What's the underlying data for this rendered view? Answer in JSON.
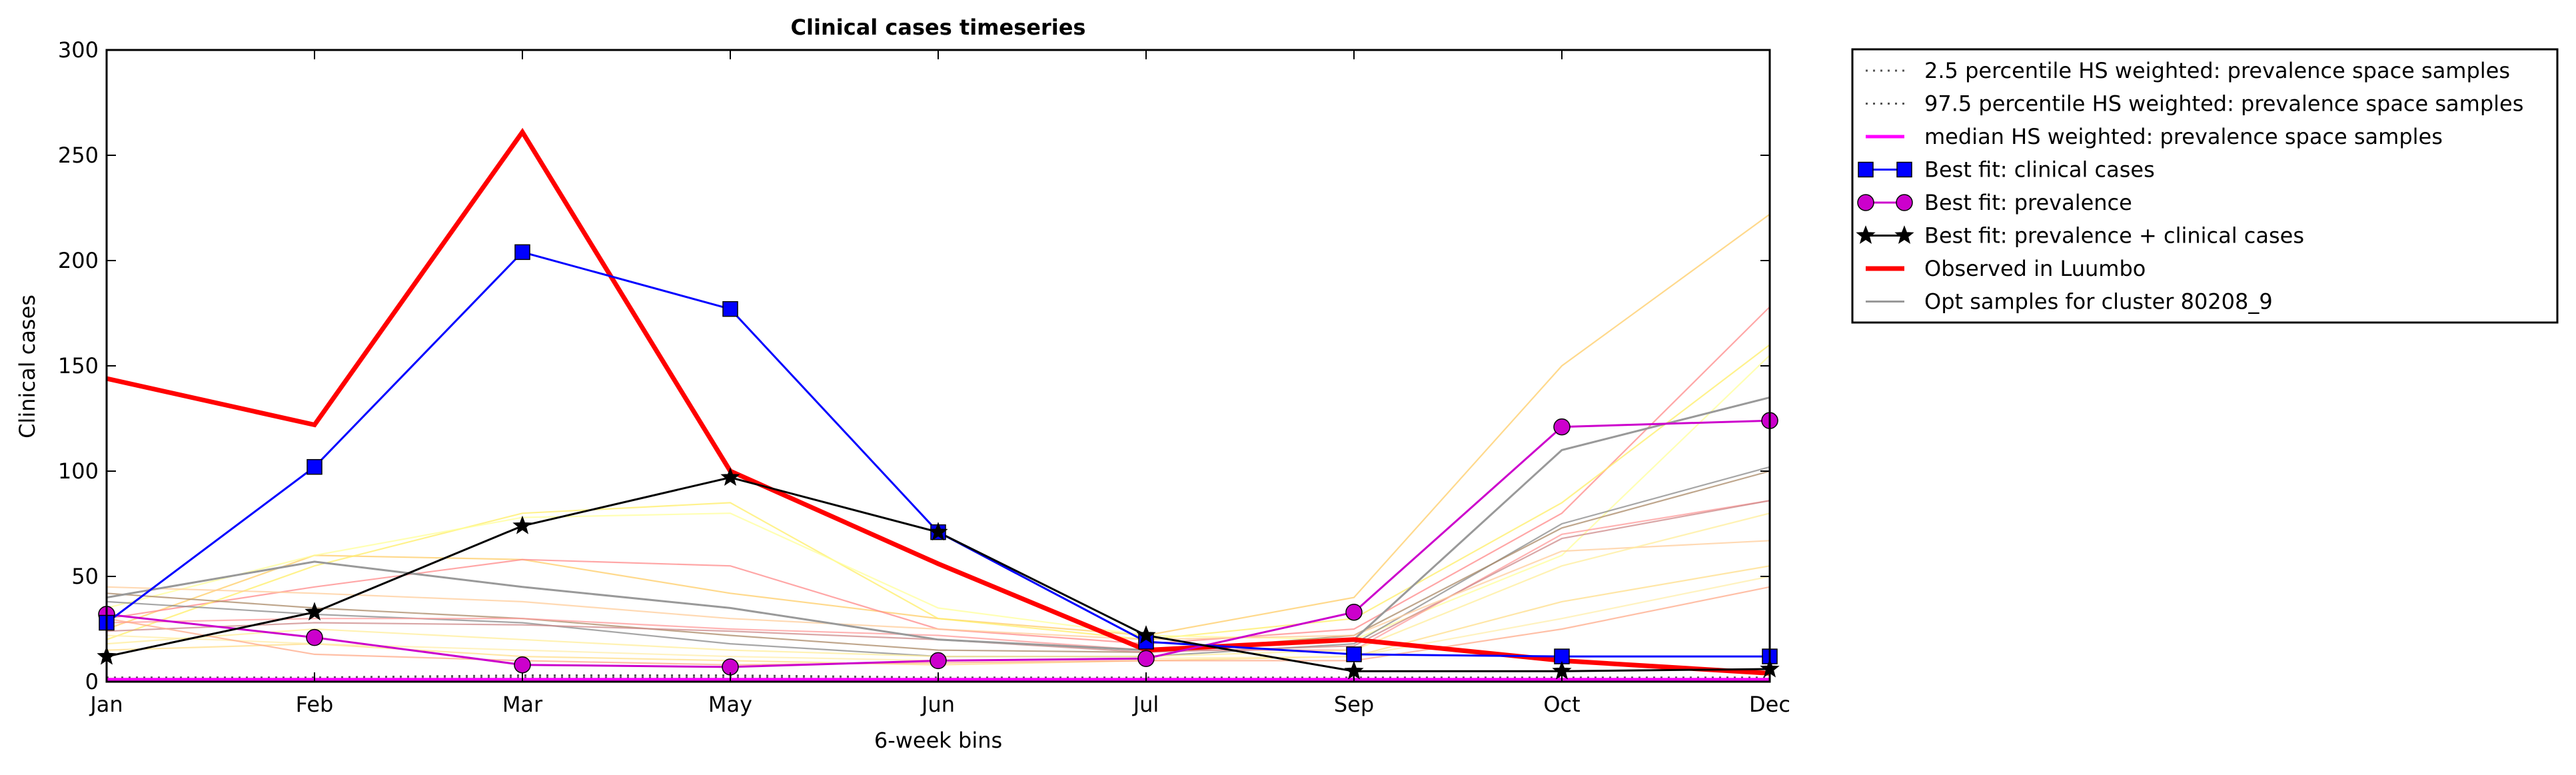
{
  "chart_data": {
    "type": "line",
    "title": "Clinical cases timeseries",
    "xlabel": "6-week bins",
    "ylabel": "Clinical cases",
    "x_ticks": [
      "Jan",
      "Feb",
      "Mar",
      "May",
      "Jun",
      "Jul",
      "Sep",
      "Oct",
      "Dec"
    ],
    "y_ticks": [
      0,
      50,
      100,
      150,
      200,
      250,
      300
    ],
    "ylim": [
      0,
      300
    ],
    "grid": false,
    "legend_placement": "outside-top-right",
    "series": [
      {
        "name": "2.5 percentile HS weighted: prevalence space samples",
        "style": "dotted",
        "color": "#555555",
        "values": [
          1,
          1,
          2,
          2,
          1,
          1,
          1,
          1,
          1
        ]
      },
      {
        "name": "97.5 percentile HS weighted: prevalence space samples",
        "style": "dotted",
        "color": "#555555",
        "values": [
          2,
          2,
          3,
          3,
          2,
          2,
          2,
          2,
          2
        ]
      },
      {
        "name": "median HS weighted: prevalence space samples",
        "style": "solid",
        "color": "#ff00ff",
        "values": [
          1,
          1,
          1,
          1,
          1,
          1,
          1,
          1,
          1
        ]
      },
      {
        "name": "Best fit: clinical cases",
        "style": "solid",
        "color": "#0000ff",
        "marker": "square",
        "values": [
          28,
          102,
          204,
          177,
          71,
          19,
          13,
          12,
          12
        ]
      },
      {
        "name": "Best fit: prevalence",
        "style": "solid",
        "color": "#cc00cc",
        "marker": "circle",
        "values": [
          32,
          21,
          8,
          7,
          10,
          11,
          33,
          121,
          124
        ]
      },
      {
        "name": "Best fit: prevalence + clinical cases",
        "style": "solid",
        "color": "#000000",
        "marker": "star",
        "values": [
          12,
          33,
          74,
          97,
          71,
          22,
          5,
          5,
          6
        ]
      },
      {
        "name": "Observed in Luumbo",
        "style": "solid",
        "color": "#ff0000",
        "values": [
          144,
          122,
          261,
          100,
          56,
          15,
          20,
          10,
          4
        ]
      },
      {
        "name": "Opt samples for cluster 80208_9",
        "style": "solid",
        "color": "#999999",
        "values": [
          40,
          57,
          45,
          35,
          20,
          15,
          20,
          110,
          135
        ]
      }
    ],
    "background_samples": [
      {
        "color": "#ffcc66",
        "values": [
          25,
          60,
          58,
          42,
          30,
          22,
          40,
          150,
          222
        ]
      },
      {
        "color": "#ff8888",
        "values": [
          30,
          45,
          58,
          55,
          25,
          18,
          25,
          80,
          178
        ]
      },
      {
        "color": "#ffee66",
        "values": [
          20,
          55,
          80,
          85,
          30,
          20,
          30,
          85,
          160
        ]
      },
      {
        "color": "#ffff99",
        "values": [
          35,
          60,
          78,
          80,
          35,
          22,
          20,
          60,
          155
        ]
      },
      {
        "color": "#888888",
        "values": [
          38,
          32,
          28,
          18,
          12,
          12,
          18,
          75,
          102
        ]
      },
      {
        "color": "#aa8866",
        "values": [
          42,
          35,
          30,
          22,
          15,
          14,
          22,
          73,
          100
        ]
      },
      {
        "color": "#ff9999",
        "values": [
          28,
          30,
          30,
          25,
          22,
          15,
          15,
          70,
          86
        ]
      },
      {
        "color": "#cc8888",
        "values": [
          24,
          28,
          27,
          24,
          20,
          14,
          17,
          68,
          86
        ]
      },
      {
        "color": "#ffcc99",
        "values": [
          45,
          42,
          38,
          30,
          25,
          20,
          22,
          62,
          67
        ]
      },
      {
        "color": "#ffee99",
        "values": [
          18,
          25,
          20,
          15,
          12,
          12,
          15,
          55,
          80
        ]
      },
      {
        "color": "#ffdd88",
        "values": [
          15,
          18,
          12,
          10,
          8,
          10,
          12,
          38,
          55
        ]
      },
      {
        "color": "#ffeeaa",
        "values": [
          22,
          18,
          15,
          12,
          10,
          11,
          12,
          30,
          50
        ]
      },
      {
        "color": "#ffaa88",
        "values": [
          30,
          13,
          10,
          8,
          9,
          10,
          10,
          25,
          45
        ]
      }
    ]
  }
}
